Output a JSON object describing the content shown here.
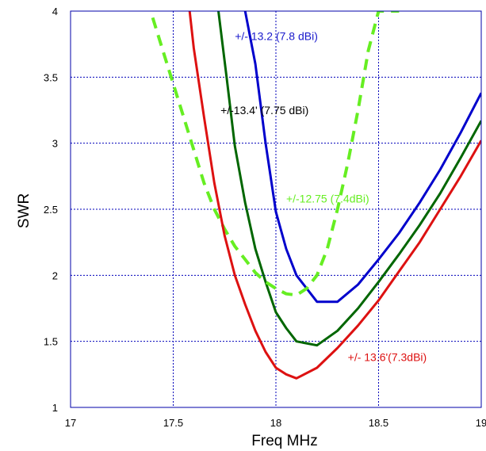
{
  "chart_data": {
    "type": "line",
    "title": "",
    "xlabel": "Freq MHz",
    "ylabel": "SWR",
    "xlim": [
      17,
      19
    ],
    "ylim": [
      1,
      4
    ],
    "xticks": [
      17,
      17.5,
      18,
      18.5,
      19
    ],
    "xtick_labels": [
      "17",
      "17.5",
      "18",
      "18.5",
      "19"
    ],
    "yticks": [
      1,
      1.5,
      2,
      2.5,
      3,
      3.5,
      4
    ],
    "ytick_labels": [
      "1",
      "1.5",
      "2",
      "2.5",
      "3",
      "3.5",
      "4"
    ],
    "grid": true,
    "legend": "none",
    "series": [
      {
        "name": "+/- 13.2 (7.8 dBi)",
        "color": "#0000cc",
        "dashed": false,
        "x": [
          17.85,
          17.9,
          17.95,
          18.0,
          18.05,
          18.1,
          18.2,
          18.3,
          18.4,
          18.5,
          18.6,
          18.7,
          18.8,
          18.9,
          19.0
        ],
        "y": [
          4.0,
          3.6,
          3.0,
          2.48,
          2.2,
          2.0,
          1.8,
          1.8,
          1.93,
          2.12,
          2.32,
          2.55,
          2.8,
          3.08,
          3.38
        ]
      },
      {
        "name": "+/-13.4' (7.75 dBi)",
        "color": "#006600",
        "dashed": false,
        "x": [
          17.72,
          17.76,
          17.8,
          17.85,
          17.9,
          17.95,
          18.0,
          18.05,
          18.1,
          18.2,
          18.3,
          18.4,
          18.5,
          18.6,
          18.7,
          18.8,
          18.9,
          19.0
        ],
        "y": [
          4.0,
          3.5,
          2.98,
          2.55,
          2.2,
          1.95,
          1.72,
          1.6,
          1.5,
          1.47,
          1.58,
          1.75,
          1.95,
          2.16,
          2.38,
          2.62,
          2.89,
          3.17
        ]
      },
      {
        "name": "+/-12.75 (7.4dBi)",
        "color": "#66ee22",
        "dashed": true,
        "x": [
          17.4,
          17.45,
          17.5,
          17.55,
          17.6,
          17.65,
          17.7,
          17.75,
          17.8,
          17.85,
          17.9,
          17.95,
          18.0,
          18.05,
          18.1,
          18.15,
          18.2,
          18.25,
          18.3,
          18.35,
          18.4,
          18.45,
          18.5,
          18.55,
          18.6
        ],
        "y": [
          3.95,
          3.7,
          3.45,
          3.2,
          2.95,
          2.7,
          2.5,
          2.35,
          2.22,
          2.12,
          2.02,
          1.95,
          1.9,
          1.86,
          1.85,
          1.9,
          2.0,
          2.2,
          2.5,
          2.85,
          3.25,
          3.7,
          4.0,
          4.0,
          4.0
        ]
      },
      {
        "name": "+/- 13.6'(7.3dBi)",
        "color": "#dd1111",
        "dashed": false,
        "x": [
          17.58,
          17.6,
          17.65,
          17.7,
          17.75,
          17.8,
          17.85,
          17.9,
          17.95,
          18.0,
          18.05,
          18.1,
          18.2,
          18.3,
          18.4,
          18.5,
          18.6,
          18.7,
          18.8,
          18.9,
          19.0
        ],
        "y": [
          4.0,
          3.72,
          3.2,
          2.7,
          2.3,
          2.0,
          1.78,
          1.58,
          1.42,
          1.3,
          1.25,
          1.22,
          1.3,
          1.45,
          1.62,
          1.81,
          2.03,
          2.25,
          2.5,
          2.75,
          3.02
        ]
      }
    ],
    "annotations": [
      {
        "text": "+/- 13.2 (7.8 dBi)",
        "x": 17.8,
        "y": 3.78,
        "color": "#1a1acc"
      },
      {
        "text": "+/-13.4' (7.75 dBi)",
        "x": 17.73,
        "y": 3.22,
        "color": "#000000"
      },
      {
        "text": "+/-12.75 (7.4dBi)",
        "x": 18.05,
        "y": 2.55,
        "color": "#66ee22"
      },
      {
        "text": "+/- 13.6'(7.3dBi)",
        "x": 18.35,
        "y": 1.35,
        "color": "#dd1111"
      }
    ]
  }
}
